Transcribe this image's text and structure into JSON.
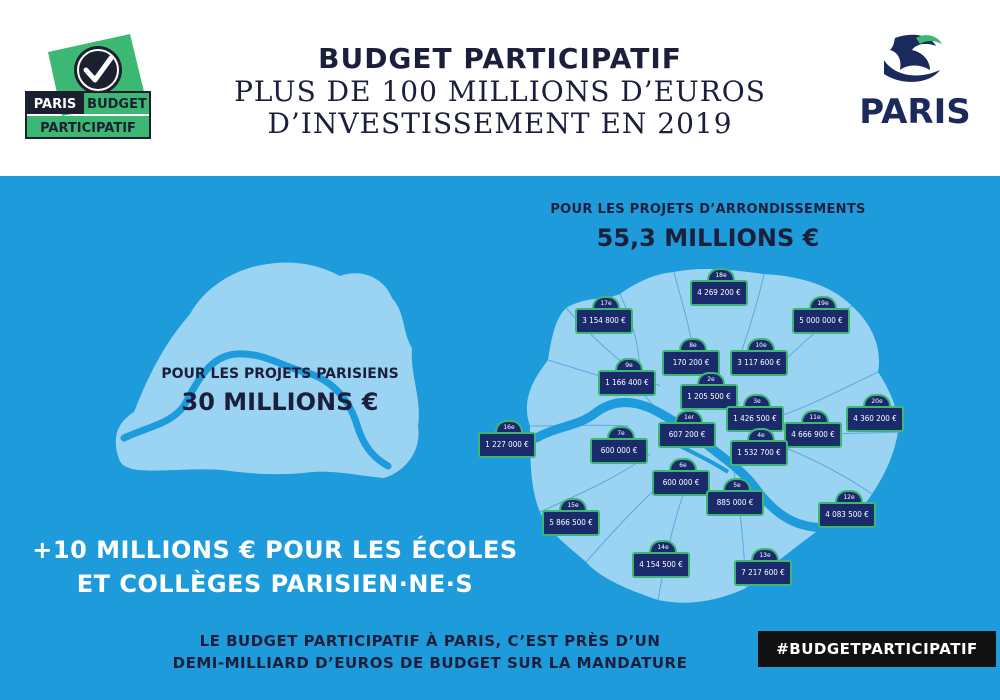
{
  "header": {
    "title_line1": "BUDGET PARTICIPATIF",
    "title_line2": "PLUS DE 100 MILLIONS D’EUROS",
    "title_line3": "D’INVESTISSEMENT EN 2019"
  },
  "logo_bp": {
    "line1": "PARIS",
    "line2": "BUDGET",
    "line3": "PARTICIPATIF"
  },
  "logo_paris": {
    "text": "PARIS"
  },
  "parisian_projects": {
    "label": "POUR LES PROJETS PARISIENS",
    "amount": "30 MILLIONS €"
  },
  "arrondissement_projects": {
    "label": "POUR LES PROJETS D’ARRONDISSEMENTS",
    "amount": "55,3 MILLIONS €"
  },
  "schools": {
    "line1": "+10 MILLIONS € POUR LES ÉCOLES",
    "line2": "ET COLLÈGES PARISIEN·NE·S"
  },
  "footer": {
    "line1": "LE BUDGET PARTICIPATIF À PARIS, C’EST PRÈS D’UN",
    "line2": "DEMI-MILLIARD D’EUROS DE BUDGET SUR LA MANDATURE"
  },
  "hashtag": "#BUDGETPARTICIPATIF",
  "plates": [
    {
      "arr": "18e",
      "amount": "4 269 200 €"
    },
    {
      "arr": "17e",
      "amount": "3 154 800 €"
    },
    {
      "arr": "19e",
      "amount": "5 000 000 €"
    },
    {
      "arr": "8e",
      "amount": "170 200 €"
    },
    {
      "arr": "10e",
      "amount": "3 117 600 €"
    },
    {
      "arr": "9e",
      "amount": "1 166 400 €"
    },
    {
      "arr": "2e",
      "amount": "1 205 500 €"
    },
    {
      "arr": "16e",
      "amount": "1 227 000 €"
    },
    {
      "arr": "3e",
      "amount": "1 426 500 €"
    },
    {
      "arr": "11e",
      "amount": "4 666 900 €"
    },
    {
      "arr": "20e",
      "amount": "4 360 200 €"
    },
    {
      "arr": "1er",
      "amount": "607 200 €"
    },
    {
      "arr": "7e",
      "amount": "600 000 €"
    },
    {
      "arr": "4e",
      "amount": "1 532 700 €"
    },
    {
      "arr": "6e",
      "amount": "600 000 €"
    },
    {
      "arr": "5e",
      "amount": "885 000 €"
    },
    {
      "arr": "12e",
      "amount": "4 083 500 €"
    },
    {
      "arr": "15e",
      "amount": "5 866 500 €"
    },
    {
      "arr": "14e",
      "amount": "4 154 500 €"
    },
    {
      "arr": "13e",
      "amount": "7 217 600 €"
    }
  ]
}
